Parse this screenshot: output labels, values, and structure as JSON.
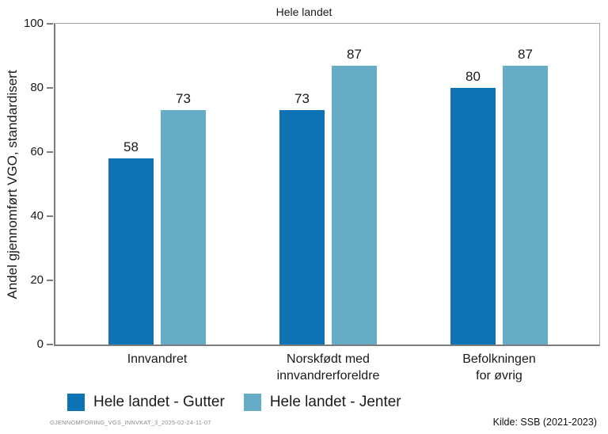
{
  "chart_data": {
    "type": "bar",
    "title": "Hele landet",
    "ylabel": "Andel gjennomført VGO, standardisert",
    "xlabel": "",
    "ylim": [
      0,
      100
    ],
    "yticks": [
      0,
      20,
      40,
      60,
      80,
      100
    ],
    "grid": false,
    "legend_position": "bottom-left",
    "categories": [
      "Innvandret",
      "Norskfødt med\ninnvandrerforeldre",
      "Befolkningen\nfor øvrig"
    ],
    "series": [
      {
        "name": "Hele landet - Gutter",
        "color": "#0e73b5",
        "values": [
          58,
          73,
          80
        ]
      },
      {
        "name": "Hele landet - Jenter",
        "color": "#67acc5",
        "values": [
          73,
          87,
          87
        ]
      }
    ],
    "value_labels_shown": true
  },
  "footer": {
    "left": "GJENNOMFORING_VGS_INNVKAT_3_2025-02-24-11-07",
    "right": "Kilde: SSB (2021-2023)"
  },
  "colors": {
    "axis": "#7d7d7d",
    "plot_border": "#a6a6a6",
    "background": "#ffffff",
    "footnote_gray": "#8d8d8d"
  }
}
